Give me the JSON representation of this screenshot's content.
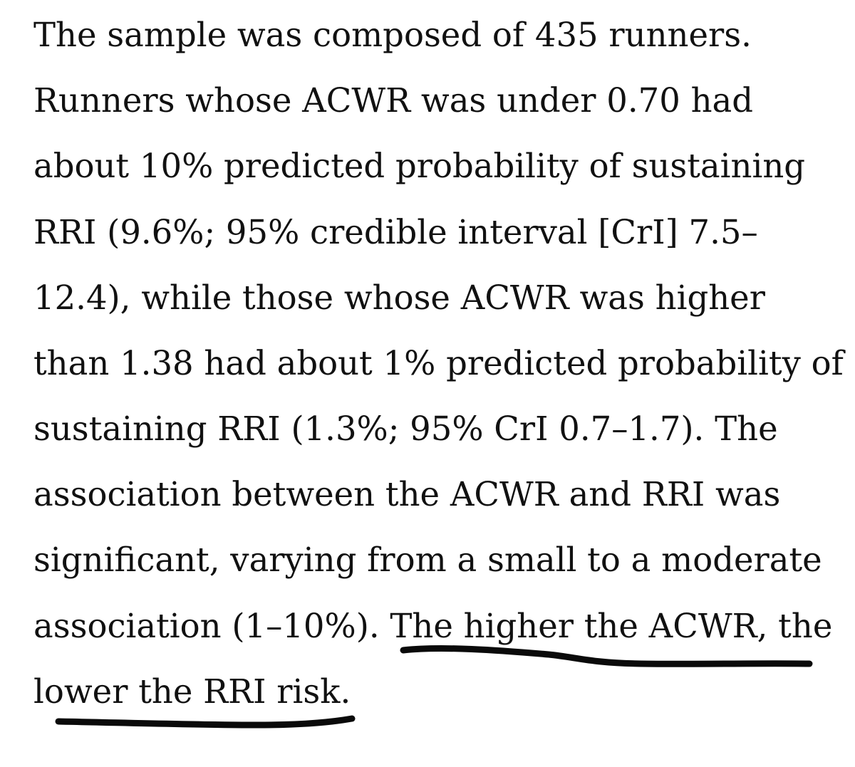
{
  "document": {
    "paragraph_lines": [
      "The sample was composed of 435 runners.",
      "Runners whose ACWR was under 0.70 had",
      "about 10% predicted probability of sustaining",
      "RRI (9.6%; 95% credible interval [CrI] 7.5–",
      "12.4), while those whose ACWR was higher",
      "than 1.38 had about 1% predicted probability of",
      "sustaining RRI (1.3%; 95% CrI 0.7–1.7). The",
      "association between the ACWR and RRI was",
      "significant, varying from a small to a moderate",
      "association (1–10%). The higher the ACWR, the",
      "lower the RRI risk."
    ],
    "underlined_text": "The higher the ACWR, the lower the RRI risk.",
    "colors": {
      "background": "#ffffff",
      "text": "#111111",
      "ink": "#0a0a0a"
    }
  }
}
